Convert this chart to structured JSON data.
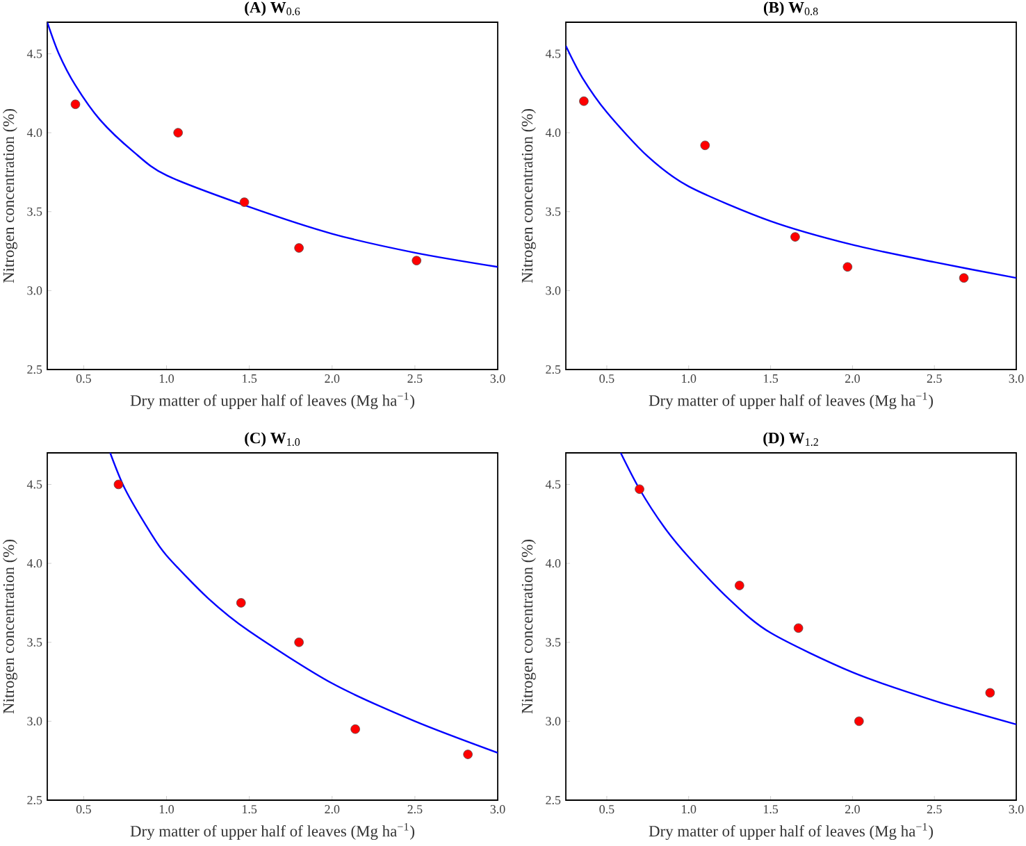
{
  "chart_data": [
    {
      "type": "scatter",
      "title": "**(A) W**$_{0.6}$",
      "xlabel": "Dry matter of upper half of leaves (Mg ha$^{−1}$)",
      "ylabel": "Nitrogen concentration (%)",
      "xlim": [
        0.28,
        3.0
      ],
      "ylim": [
        2.5,
        4.7
      ],
      "xticks": [
        {
          "value": 0.5,
          "label": "0.5"
        },
        {
          "value": 1.0,
          "label": "1.0"
        },
        {
          "value": 1.5,
          "label": "1.5"
        },
        {
          "value": 2.0,
          "label": "2.0"
        },
        {
          "value": 2.5,
          "label": "2.5"
        },
        {
          "value": 3.0,
          "label": "3.0"
        }
      ],
      "yticks": [
        {
          "value": 2.5,
          "label": "2.5"
        },
        {
          "value": 3.0,
          "label": "3.0"
        },
        {
          "value": 3.5,
          "label": "3.5"
        },
        {
          "value": 4.0,
          "label": "4.0"
        },
        {
          "value": 4.5,
          "label": "4.5"
        }
      ],
      "grid": false,
      "series": [
        {
          "color": "#ff0000",
          "marker": "circle",
          "x": [
            0.45,
            1.07,
            1.47,
            1.8,
            2.51
          ],
          "values": [
            4.18,
            4.0,
            3.56,
            3.27,
            3.19
          ]
        },
        {
          "type": "line",
          "color": "#0000ff",
          "marker": "none",
          "line_style": "solid",
          "x": [
            0.28,
            0.35,
            0.45,
            0.6,
            0.8,
            1.0,
            1.5,
            2.0,
            2.5,
            3.0
          ],
          "values": [
            4.7,
            4.5,
            4.3,
            4.08,
            3.88,
            3.73,
            3.53,
            3.36,
            3.24,
            3.15
          ]
        }
      ]
    },
    {
      "type": "scatter",
      "title": "**(B) W**$_{0.8}$",
      "xlabel": "Dry matter of upper half of leaves (Mg ha$^{−1}$)",
      "ylabel": "Nitrogen concentration (%)",
      "xlim": [
        0.25,
        3.0
      ],
      "ylim": [
        2.5,
        4.7
      ],
      "xticks": [
        {
          "value": 0.5,
          "label": "0.5"
        },
        {
          "value": 1.0,
          "label": "1.0"
        },
        {
          "value": 1.5,
          "label": "1.5"
        },
        {
          "value": 2.0,
          "label": "2.0"
        },
        {
          "value": 2.5,
          "label": "2.5"
        },
        {
          "value": 3.0,
          "label": "3.0"
        }
      ],
      "yticks": [
        {
          "value": 2.5,
          "label": "2.5"
        },
        {
          "value": 3.0,
          "label": "3.0"
        },
        {
          "value": 3.5,
          "label": "3.5"
        },
        {
          "value": 4.0,
          "label": "4.0"
        },
        {
          "value": 4.5,
          "label": "4.5"
        }
      ],
      "grid": false,
      "series": [
        {
          "color": "#ff0000",
          "marker": "circle",
          "x": [
            0.36,
            1.1,
            1.65,
            1.97,
            2.68
          ],
          "values": [
            4.2,
            3.92,
            3.34,
            3.15,
            3.08
          ]
        },
        {
          "type": "line",
          "color": "#0000ff",
          "marker": "none",
          "line_style": "solid",
          "x": [
            0.25,
            0.35,
            0.5,
            0.75,
            1.0,
            1.5,
            2.0,
            2.5,
            3.0
          ],
          "values": [
            4.55,
            4.35,
            4.13,
            3.85,
            3.66,
            3.44,
            3.29,
            3.18,
            3.08
          ]
        }
      ]
    },
    {
      "type": "scatter",
      "title": "**(C) W**$_{1.0}$",
      "xlabel": "Dry matter of upper half of leaves (Mg ha$^{−1}$)",
      "ylabel": "Nitrogen concentration (%)",
      "xlim": [
        0.28,
        3.0
      ],
      "ylim": [
        2.5,
        4.7
      ],
      "xticks": [
        {
          "value": 0.5,
          "label": "0.5"
        },
        {
          "value": 1.0,
          "label": "1.0"
        },
        {
          "value": 1.5,
          "label": "1.5"
        },
        {
          "value": 2.0,
          "label": "2.0"
        },
        {
          "value": 2.5,
          "label": "2.5"
        },
        {
          "value": 3.0,
          "label": "3.0"
        }
      ],
      "yticks": [
        {
          "value": 2.5,
          "label": "2.5"
        },
        {
          "value": 3.0,
          "label": "3.0"
        },
        {
          "value": 3.5,
          "label": "3.5"
        },
        {
          "value": 4.0,
          "label": "4.0"
        },
        {
          "value": 4.5,
          "label": "4.5"
        }
      ],
      "grid": false,
      "series": [
        {
          "color": "#ff0000",
          "marker": "circle",
          "x": [
            0.71,
            1.45,
            1.8,
            2.14,
            2.82
          ],
          "values": [
            4.5,
            3.75,
            3.5,
            2.95,
            2.79
          ]
        },
        {
          "type": "line",
          "color": "#0000ff",
          "marker": "none",
          "line_style": "solid",
          "x": [
            0.66,
            0.75,
            0.9,
            1.0,
            1.25,
            1.5,
            2.0,
            2.5,
            3.0
          ],
          "values": [
            4.7,
            4.47,
            4.2,
            4.05,
            3.78,
            3.57,
            3.24,
            3.0,
            2.8
          ]
        }
      ]
    },
    {
      "type": "scatter",
      "title": "**(D) W**$_{1.2}$",
      "xlabel": "Dry matter of upper half of leaves (Mg ha$^{−1}$)",
      "ylabel": "Nitrogen concentration (%)",
      "xlim": [
        0.25,
        3.0
      ],
      "ylim": [
        2.5,
        4.7
      ],
      "xticks": [
        {
          "value": 0.5,
          "label": "0.5"
        },
        {
          "value": 1.0,
          "label": "1.0"
        },
        {
          "value": 1.5,
          "label": "1.5"
        },
        {
          "value": 2.0,
          "label": "2.0"
        },
        {
          "value": 2.5,
          "label": "2.5"
        },
        {
          "value": 3.0,
          "label": "3.0"
        }
      ],
      "yticks": [
        {
          "value": 2.5,
          "label": "2.5"
        },
        {
          "value": 3.0,
          "label": "3.0"
        },
        {
          "value": 3.5,
          "label": "3.5"
        },
        {
          "value": 4.0,
          "label": "4.0"
        },
        {
          "value": 4.5,
          "label": "4.5"
        }
      ],
      "grid": false,
      "series": [
        {
          "color": "#ff0000",
          "marker": "circle",
          "x": [
            0.7,
            1.31,
            1.67,
            2.04,
            2.84
          ],
          "values": [
            4.47,
            3.86,
            3.59,
            3.0,
            3.18
          ]
        },
        {
          "type": "line",
          "color": "#0000ff",
          "marker": "none",
          "line_style": "solid",
          "x": [
            0.585,
            0.7,
            0.85,
            1.0,
            1.25,
            1.5,
            2.0,
            2.5,
            3.0
          ],
          "values": [
            4.7,
            4.47,
            4.23,
            4.04,
            3.77,
            3.56,
            3.31,
            3.13,
            2.98
          ]
        }
      ]
    }
  ]
}
